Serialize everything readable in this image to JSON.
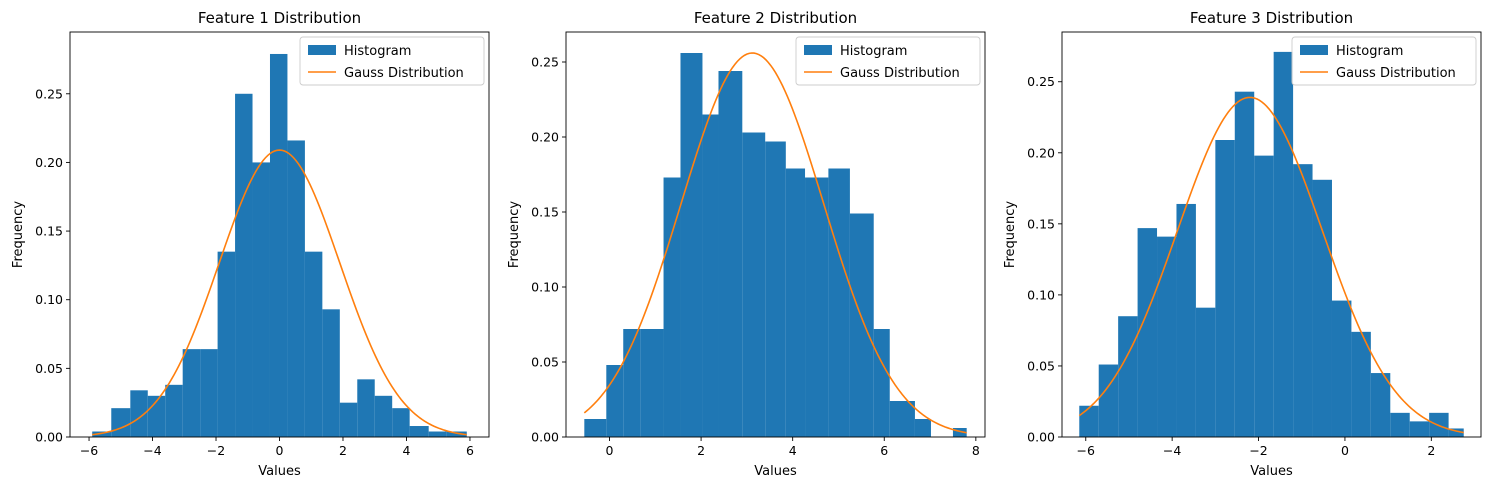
{
  "colors": {
    "histogram": "#1f77b4",
    "gauss": "#ff7f0e"
  },
  "chart_data": [
    {
      "type": "bar",
      "title": "Feature 1 Distribution",
      "xlabel": "Values",
      "ylabel": "Frequency",
      "xlim": [
        -6.6,
        6.6
      ],
      "ylim": [
        0,
        0.295
      ],
      "xticks": [
        -6,
        -4,
        -2,
        0,
        2,
        4,
        6
      ],
      "xtick_labels": [
        "−6",
        "−4",
        "−2",
        "0",
        "2",
        "4",
        "6"
      ],
      "yticks": [
        0,
        0.05,
        0.1,
        0.15,
        0.2,
        0.25
      ],
      "ytick_labels": [
        "0.00",
        "0.05",
        "0.10",
        "0.15",
        "0.20",
        "0.25"
      ],
      "legend": {
        "position": "top-right",
        "entries": [
          "Histogram",
          "Gauss Distribution"
        ]
      },
      "histogram": {
        "name": "Histogram",
        "bin_edges": [
          -5.9,
          -5.3,
          -4.7,
          -4.15,
          -3.6,
          -3.05,
          -2.5,
          -1.95,
          -1.4,
          -0.85,
          -0.3,
          0.25,
          0.8,
          1.35,
          1.9,
          2.45,
          3.0,
          3.55,
          4.1,
          4.7,
          5.25,
          5.9
        ],
        "values": [
          0.004,
          0.021,
          0.034,
          0.03,
          0.038,
          0.064,
          0.064,
          0.135,
          0.25,
          0.2,
          0.279,
          0.216,
          0.135,
          0.093,
          0.025,
          0.042,
          0.03,
          0.021,
          0.008,
          0.004,
          0.004
        ]
      },
      "gauss": {
        "name": "Gauss Distribution",
        "mean": 0.0,
        "std": 1.9,
        "x_range": [
          -5.9,
          5.9
        ],
        "peak": 0.209
      }
    },
    {
      "type": "bar",
      "title": "Feature 2 Distribution",
      "xlabel": "Values",
      "ylabel": "Frequency",
      "xlim": [
        -0.95,
        8.2
      ],
      "ylim": [
        0,
        0.27
      ],
      "xticks": [
        0,
        2,
        4,
        6,
        8
      ],
      "xtick_labels": [
        "0",
        "2",
        "4",
        "6",
        "8"
      ],
      "yticks": [
        0,
        0.05,
        0.1,
        0.15,
        0.2,
        0.25
      ],
      "ytick_labels": [
        "0.00",
        "0.05",
        "0.10",
        "0.15",
        "0.20",
        "0.25"
      ],
      "legend": {
        "position": "top-right",
        "entries": [
          "Histogram",
          "Gauss Distribution"
        ]
      },
      "histogram": {
        "name": "Histogram",
        "bin_edges": [
          -0.55,
          -0.07,
          0.3,
          0.67,
          1.18,
          1.55,
          2.03,
          2.38,
          2.9,
          3.4,
          3.85,
          4.27,
          4.78,
          5.25,
          5.77,
          6.12,
          6.67,
          7.02,
          7.5,
          7.8
        ],
        "values": [
          0.012,
          0.048,
          0.072,
          0.072,
          0.173,
          0.256,
          0.215,
          0.244,
          0.203,
          0.197,
          0.179,
          0.173,
          0.179,
          0.149,
          0.072,
          0.024,
          0.012,
          0.0,
          0.006
        ]
      },
      "gauss": {
        "name": "Gauss Distribution",
        "mean": 3.12,
        "std": 1.56,
        "x_range": [
          -0.55,
          7.8
        ],
        "peak": 0.256
      }
    },
    {
      "type": "bar",
      "title": "Feature 3 Distribution",
      "xlabel": "Values",
      "ylabel": "Frequency",
      "xlim": [
        -6.55,
        3.15
      ],
      "ylim": [
        0,
        0.285
      ],
      "xticks": [
        -6,
        -4,
        -2,
        0,
        2
      ],
      "xtick_labels": [
        "−6",
        "−4",
        "−2",
        "0",
        "2"
      ],
      "yticks": [
        0,
        0.05,
        0.1,
        0.15,
        0.2,
        0.25
      ],
      "ytick_labels": [
        "0.00",
        "0.05",
        "0.10",
        "0.15",
        "0.20",
        "0.25"
      ],
      "legend": {
        "position": "top-right",
        "entries": [
          "Histogram",
          "Gauss Distribution"
        ]
      },
      "histogram": {
        "name": "Histogram",
        "bin_edges": [
          -6.15,
          -5.7,
          -5.25,
          -4.8,
          -4.35,
          -3.9,
          -3.45,
          -3.0,
          -2.55,
          -2.1,
          -1.65,
          -1.2,
          -0.75,
          -0.3,
          0.15,
          0.6,
          1.05,
          1.5,
          1.95,
          2.4,
          2.75
        ],
        "values": [
          0.022,
          0.051,
          0.085,
          0.147,
          0.141,
          0.164,
          0.091,
          0.209,
          0.243,
          0.198,
          0.271,
          0.192,
          0.181,
          0.096,
          0.074,
          0.045,
          0.017,
          0.011,
          0.017,
          0.006
        ]
      },
      "gauss": {
        "name": "Gauss Distribution",
        "mean": -2.2,
        "std": 1.68,
        "x_range": [
          -6.15,
          2.75
        ],
        "peak": 0.239
      }
    }
  ]
}
